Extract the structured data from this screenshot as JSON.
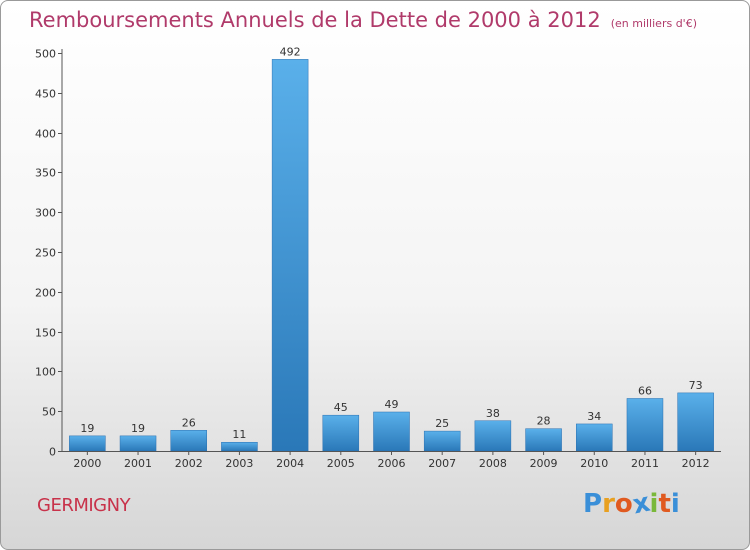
{
  "chart_data": {
    "type": "bar",
    "title": "Remboursements Annuels de la Dette de 2000 à 2012",
    "subtitle": "(en milliers d'€)",
    "xlabel": "",
    "ylabel": "",
    "categories": [
      "2000",
      "2001",
      "2002",
      "2003",
      "2004",
      "2005",
      "2006",
      "2007",
      "2008",
      "2009",
      "2010",
      "2011",
      "2012"
    ],
    "values": [
      19,
      19,
      26,
      11,
      492,
      45,
      49,
      25,
      38,
      28,
      34,
      66,
      73
    ],
    "ylim": [
      0,
      500
    ],
    "yticks": [
      0,
      50,
      100,
      150,
      200,
      250,
      300,
      350,
      400,
      450,
      500
    ],
    "grid": false,
    "bar_color": "#4a9be0"
  },
  "footer": {
    "commune": "GERMIGNY",
    "logo_letters": [
      "P",
      "r",
      "o",
      "x",
      "i",
      "t",
      "i"
    ],
    "logo_colors": [
      "#3a8fd8",
      "#e8a020",
      "#e05a20",
      "#3a8fd8",
      "#7ab83a",
      "#e05a20",
      "#3a8fd8"
    ]
  }
}
